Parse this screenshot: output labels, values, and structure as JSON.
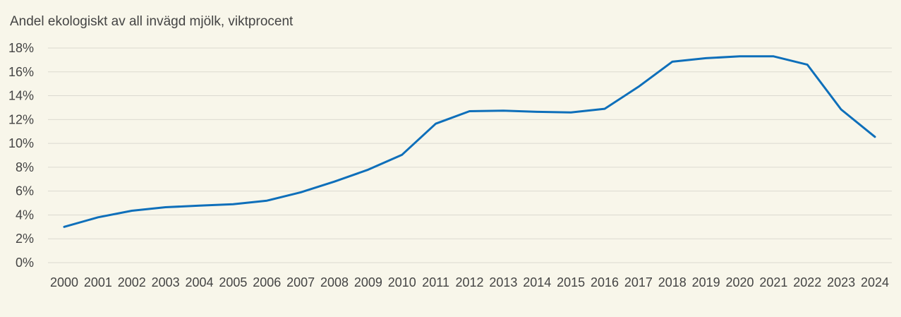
{
  "chart_data": {
    "type": "line",
    "title": "Andel ekologiskt av all invägd mjölk, viktprocent",
    "xlabel": "",
    "ylabel": "",
    "x": [
      "2000",
      "2001",
      "2002",
      "2003",
      "2004",
      "2005",
      "2006",
      "2007",
      "2008",
      "2009",
      "2010",
      "2011",
      "2012",
      "2013",
      "2014",
      "2015",
      "2016",
      "2017",
      "2018",
      "2019",
      "2020",
      "2021",
      "2022",
      "2023",
      "2024"
    ],
    "series": [
      {
        "values": [
          3.0,
          3.8,
          4.35,
          4.65,
          4.78,
          4.9,
          5.2,
          5.9,
          6.8,
          7.8,
          9.05,
          11.65,
          12.7,
          12.75,
          12.65,
          12.6,
          12.9,
          14.75,
          16.85,
          17.15,
          17.3,
          17.3,
          16.6,
          12.85,
          10.55
        ],
        "color": "#0e6fba"
      }
    ],
    "ylim": [
      0,
      18
    ],
    "yticks": [
      0,
      2,
      4,
      6,
      8,
      10,
      12,
      14,
      16,
      18
    ],
    "ytick_labels": [
      "0%",
      "2%",
      "4%",
      "6%",
      "8%",
      "10%",
      "12%",
      "14%",
      "16%",
      "18%"
    ],
    "grid": true,
    "legend": "none",
    "background": "#f8f6ea"
  }
}
